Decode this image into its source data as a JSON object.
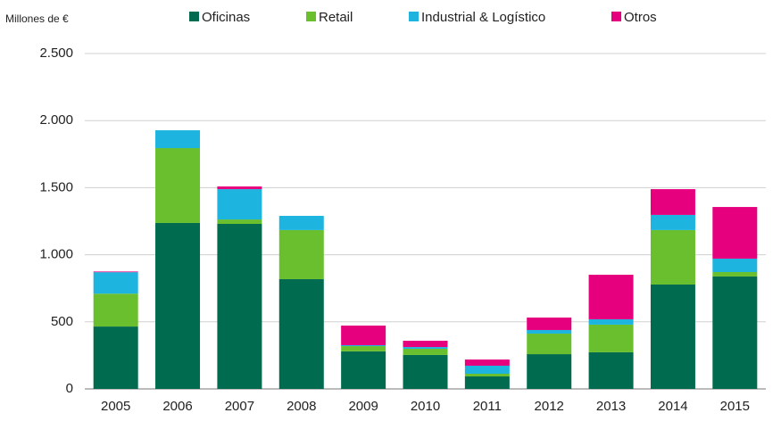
{
  "chart_data": {
    "type": "stacked_bar",
    "y_axis_label": "Millones de €",
    "categories": [
      "2005",
      "2006",
      "2007",
      "2008",
      "2009",
      "2010",
      "2011",
      "2012",
      "2013",
      "2014",
      "2015"
    ],
    "series": [
      {
        "name": "Oficinas",
        "color": "#006b4e",
        "values": [
          465,
          1237,
          1230,
          818,
          280,
          253,
          93,
          259,
          273,
          778,
          838
        ]
      },
      {
        "name": "Retail",
        "color": "#6abf2e",
        "values": [
          245,
          558,
          33,
          366,
          39,
          46,
          20,
          153,
          206,
          406,
          33
        ]
      },
      {
        "name": "Industrial & Logístico",
        "color": "#1db5e0",
        "values": [
          160,
          133,
          226,
          106,
          7,
          13,
          60,
          27,
          40,
          113,
          100
        ]
      },
      {
        "name": "Otros",
        "color": "#e6007e",
        "values": [
          5,
          0,
          20,
          0,
          146,
          47,
          46,
          93,
          332,
          192,
          385
        ]
      }
    ],
    "ylim": [
      0,
      2500
    ],
    "yticks": [
      0,
      500,
      {
        "value": 1000,
        "label": "1.000"
      },
      {
        "value": 1500,
        "label": "1.500"
      },
      {
        "value": 2000,
        "label": "2.000"
      },
      {
        "value": 2500,
        "label": "2.500"
      }
    ],
    "grid": true,
    "legend": "top"
  }
}
